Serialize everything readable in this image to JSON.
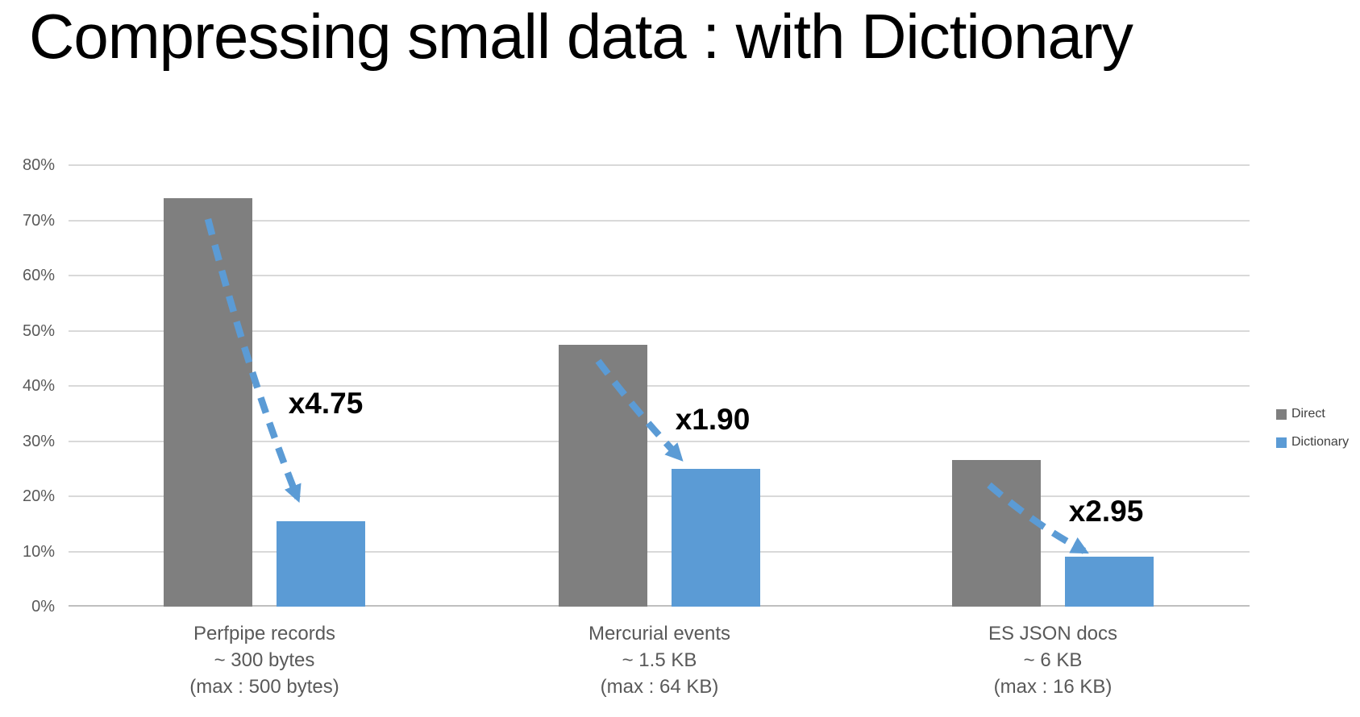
{
  "slide": {
    "title": "Compressing small data : with Dictionary"
  },
  "chart_data": {
    "type": "bar",
    "title": "Compressing small data : with Dictionary",
    "xlabel": "",
    "ylabel": "",
    "unit": "%",
    "ylim": [
      0,
      80
    ],
    "y_ticks": [
      "0%",
      "10%",
      "20%",
      "30%",
      "40%",
      "50%",
      "60%",
      "70%",
      "80%"
    ],
    "grid": true,
    "legend_position": "right",
    "arrow_color": "#5b9bd5",
    "series": [
      {
        "name": "Direct",
        "color": "#7f7f7f",
        "values": [
          74,
          47.5,
          26.5
        ]
      },
      {
        "name": "Dictionary",
        "color": "#5b9bd5",
        "values": [
          15.5,
          25,
          9
        ]
      }
    ],
    "groups": [
      {
        "label_lines": [
          "Perfpipe records",
          "~ 300 bytes",
          "(max : 500 bytes)"
        ],
        "annotation": "x4.75"
      },
      {
        "label_lines": [
          "Mercurial events",
          "~ 1.5 KB",
          "(max : 64 KB)"
        ],
        "annotation": "x1.90"
      },
      {
        "label_lines": [
          "ES JSON docs",
          "~ 6 KB",
          "(max : 16 KB)"
        ],
        "annotation": "x2.95"
      }
    ]
  }
}
